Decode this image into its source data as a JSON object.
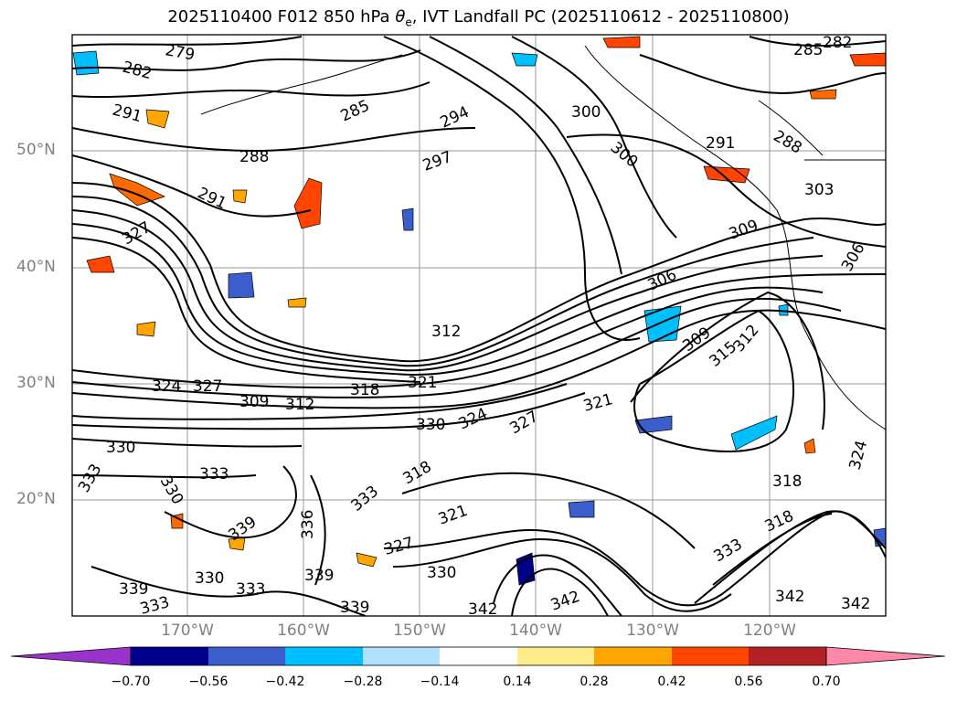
{
  "title": "2025110400 F012 850 hPa θe, IVT Landfall PC (2025110612 - 2025110800)",
  "title_parts": {
    "prefix": "2025110400 F012 850 hPa ",
    "theta": "θ",
    "subscript": "e",
    "suffix": ", IVT Landfall PC (2025110612 - 2025110800)"
  },
  "latitude_labels": [
    "50°N",
    "40°N",
    "30°N",
    "20°N"
  ],
  "longitude_labels": [
    "170°W",
    "160°W",
    "150°W",
    "140°W",
    "130°W",
    "120°W"
  ],
  "contour_labels": [
    "279",
    "282",
    "285",
    "282",
    "291",
    "288",
    "285",
    "294",
    "300",
    "297",
    "300",
    "291",
    "288",
    "303",
    "291",
    "327",
    "306",
    "309",
    "306",
    "312",
    "309",
    "315",
    "312",
    "324",
    "327",
    "309",
    "312",
    "318",
    "321",
    "321",
    "324",
    "327",
    "330",
    "330",
    "333",
    "330",
    "333",
    "339",
    "318",
    "336",
    "333",
    "321",
    "327",
    "330",
    "318",
    "342",
    "339",
    "330",
    "333",
    "339",
    "333",
    "342",
    "342",
    "342",
    "324",
    "318",
    "339",
    "333"
  ],
  "colorbar": {
    "tick_labels": [
      "−0.70",
      "−0.56",
      "−0.42",
      "−0.28",
      "−0.14",
      "0.14",
      "0.28",
      "0.42",
      "0.56",
      "0.70"
    ],
    "colors": [
      "#9933cc",
      "#00008b",
      "#3a5fcd",
      "#00bfff",
      "#b0e2ff",
      "#ffffff",
      "#ffec8b",
      "#ffa500",
      "#ff4500",
      "#b22222",
      "#ff88aa"
    ]
  },
  "colors": {
    "contour": "#000000",
    "grid": "#999999",
    "coastline": "#000000"
  }
}
